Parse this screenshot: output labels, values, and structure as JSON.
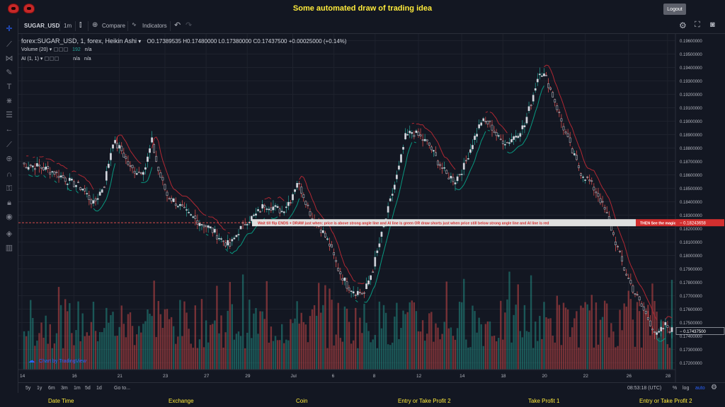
{
  "app": {
    "title": "Some automated draw of trading idea",
    "logout_label": "Logout"
  },
  "toolbar": {
    "symbol": "SUGAR_USD",
    "interval": "1m",
    "compare_label": "Compare",
    "indicators_label": "Indicators"
  },
  "legend": {
    "series_title": "forex:SUGAR_USD, 1, forex, Heikin Ashi",
    "ohlc": "O0.17389535  H0.17480000  L0.17380000  C0.17437500  +0.00025000 (+0.14%)",
    "volume_label": "Volume (20)",
    "volume_value": "192",
    "volume_extra": "n/a",
    "ai_label": "AI (1, 1)",
    "ai_value1": "n/a",
    "ai_value2": "n/a"
  },
  "annotation": {
    "text": "Wait till flip ENDS  +  DRAW just when:  price is above strong angle line and AI line is green        OR        draw shorts just when price still below strong angle line and AI line is red",
    "magic_label": "THEN See the magic!!"
  },
  "brand_label": "Chart by TradingView",
  "chart_data": {
    "type": "candlestick",
    "x_ticks": [
      "14",
      "16",
      "21",
      "23",
      "27",
      "29",
      "Jul",
      "6",
      "8",
      "12",
      "14",
      "18",
      "20",
      "22",
      "26",
      "28"
    ],
    "y_ticks": [
      "0.19600000",
      "0.19500000",
      "0.19400000",
      "0.19300000",
      "0.19200000",
      "0.19100000",
      "0.19000000",
      "0.18900000",
      "0.18800000",
      "0.18700000",
      "0.18600000",
      "0.18500000",
      "0.18400000",
      "0.18300000",
      "0.18200000",
      "0.18100000",
      "0.18000000",
      "0.17900000",
      "0.17800000",
      "0.17700000",
      "0.17600000",
      "0.17500000",
      "0.17400000",
      "0.17300000",
      "0.17200000"
    ],
    "ylim": [
      0.1715,
      0.1965
    ],
    "close_path": [
      [
        0,
        0.1868
      ],
      [
        8,
        0.1866
      ],
      [
        15,
        0.1862
      ],
      [
        22,
        0.1855
      ],
      [
        28,
        0.185
      ],
      [
        33,
        0.1838
      ],
      [
        38,
        0.1853
      ],
      [
        42,
        0.1885
      ],
      [
        46,
        0.1878
      ],
      [
        50,
        0.1865
      ],
      [
        54,
        0.1862
      ],
      [
        57,
        0.1866
      ],
      [
        60,
        0.1885
      ],
      [
        63,
        0.1863
      ],
      [
        67,
        0.1845
      ],
      [
        72,
        0.1838
      ],
      [
        77,
        0.183
      ],
      [
        82,
        0.1825
      ],
      [
        87,
        0.182
      ],
      [
        92,
        0.1812
      ],
      [
        96,
        0.1807
      ],
      [
        100,
        0.1818
      ],
      [
        104,
        0.1826
      ],
      [
        108,
        0.183
      ],
      [
        112,
        0.1838
      ],
      [
        116,
        0.1836
      ],
      [
        120,
        0.1833
      ],
      [
        124,
        0.1842
      ],
      [
        127,
        0.1855
      ],
      [
        130,
        0.1845
      ],
      [
        134,
        0.1828
      ],
      [
        138,
        0.182
      ],
      [
        142,
        0.1808
      ],
      [
        146,
        0.179
      ],
      [
        150,
        0.1778
      ],
      [
        154,
        0.1773
      ],
      [
        158,
        0.1772
      ],
      [
        162,
        0.179
      ],
      [
        166,
        0.1815
      ],
      [
        170,
        0.184
      ],
      [
        174,
        0.1865
      ],
      [
        177,
        0.1888
      ],
      [
        180,
        0.1892
      ],
      [
        184,
        0.1888
      ],
      [
        188,
        0.1882
      ],
      [
        192,
        0.187
      ],
      [
        196,
        0.186
      ],
      [
        200,
        0.1856
      ],
      [
        204,
        0.1866
      ],
      [
        208,
        0.1884
      ],
      [
        212,
        0.19
      ],
      [
        216,
        0.1898
      ],
      [
        220,
        0.1887
      ],
      [
        224,
        0.1884
      ],
      [
        228,
        0.189
      ],
      [
        232,
        0.1897
      ],
      [
        236,
        0.192
      ],
      [
        239,
        0.1938
      ],
      [
        242,
        0.1932
      ],
      [
        246,
        0.1915
      ],
      [
        250,
        0.1895
      ],
      [
        254,
        0.1877
      ],
      [
        258,
        0.1862
      ],
      [
        262,
        0.1855
      ],
      [
        266,
        0.1845
      ],
      [
        270,
        0.183
      ],
      [
        274,
        0.181
      ],
      [
        278,
        0.179
      ],
      [
        282,
        0.1775
      ],
      [
        286,
        0.1762
      ],
      [
        290,
        0.175
      ],
      [
        293,
        0.174
      ],
      [
        297,
        0.1748
      ],
      [
        300,
        0.1744
      ]
    ],
    "last_price": "0.17437500",
    "annotation_price": "0.18243658",
    "series": [
      {
        "name": "Volume (20)"
      },
      {
        "name": "AI (1, 1)"
      }
    ],
    "colors": {
      "up": "#26a69a",
      "down": "#ef5350",
      "ai_green": "#089981",
      "ai_red": "#b22833",
      "candle_body": "#d1d4dc"
    }
  },
  "range_buttons": [
    "5y",
    "1y",
    "6m",
    "3m",
    "1m",
    "5d",
    "1d"
  ],
  "goto_label": "Go to...",
  "clock": "08:53:18 (UTC)",
  "scale_buttons": [
    "%",
    "log",
    "auto"
  ],
  "footer": [
    "Date Time",
    "Exchange",
    "Coin",
    "Entry or Take Profit 2",
    "Take Profit 1",
    "Entry or Take Profit 2"
  ]
}
